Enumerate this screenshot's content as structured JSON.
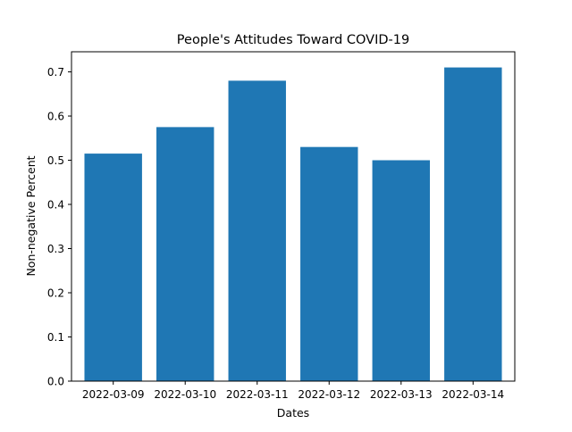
{
  "chart_data": {
    "type": "bar",
    "title": "People's Attitudes Toward COVID-19",
    "xlabel": "Dates",
    "ylabel": "Non-negative Percent",
    "categories": [
      "2022-03-09",
      "2022-03-10",
      "2022-03-11",
      "2022-03-12",
      "2022-03-13",
      "2022-03-14"
    ],
    "values": [
      0.515,
      0.575,
      0.68,
      0.53,
      0.5,
      0.71
    ],
    "ylim": [
      0,
      0.7455
    ],
    "yticks": [
      "0.0",
      "0.1",
      "0.2",
      "0.3",
      "0.4",
      "0.5",
      "0.6",
      "0.7"
    ],
    "grid": false,
    "bar_color": "#1f77b4"
  }
}
